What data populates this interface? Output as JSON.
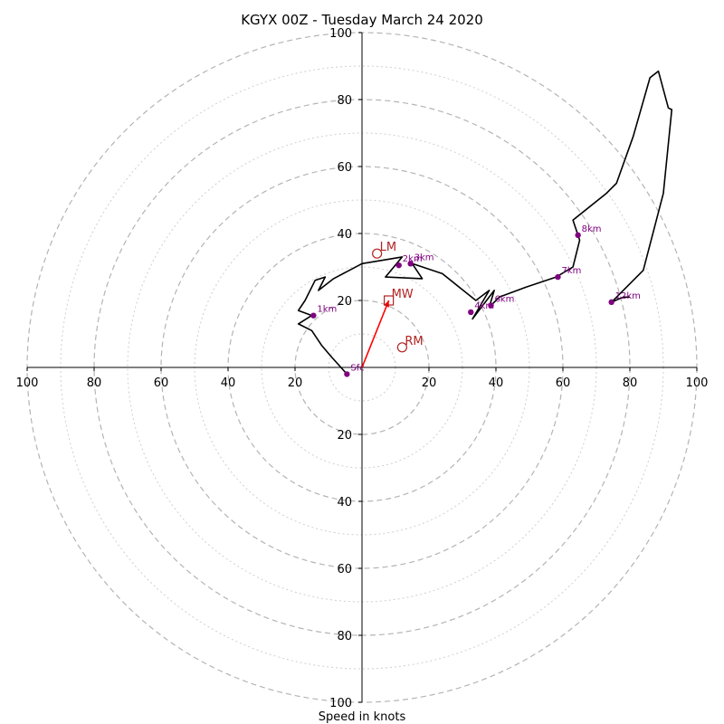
{
  "chart_data": {
    "type": "line",
    "title": "KGYX 00Z - Tuesday March 24 2020",
    "xlabel": "Speed in knots",
    "ylabel": "",
    "xlim": [
      -100,
      100
    ],
    "ylim": [
      -100,
      100
    ],
    "ring_values": [
      10,
      20,
      30,
      40,
      50,
      60,
      70,
      80,
      90,
      100
    ],
    "tick_values_x": [
      -100,
      -80,
      -60,
      -40,
      -20,
      20,
      40,
      60,
      80,
      100
    ],
    "tick_labels_x": [
      "100",
      "80",
      "60",
      "40",
      "20",
      "20",
      "40",
      "60",
      "80",
      "100"
    ],
    "tick_values_y": [
      100,
      80,
      60,
      40,
      20,
      -20,
      -40,
      -60,
      -80,
      -100
    ],
    "tick_labels_y": [
      "100",
      "80",
      "60",
      "40",
      "20",
      "20",
      "40",
      "60",
      "80",
      "100"
    ],
    "hodograph": {
      "color": "#000000",
      "u": [
        -4.5,
        -9,
        -12,
        -15,
        -19,
        -15,
        -19,
        -17,
        -14,
        -11,
        -13,
        -8.5,
        0,
        12,
        7,
        18,
        15,
        24,
        34,
        38,
        33,
        39.5,
        38,
        41,
        49,
        58,
        63,
        65,
        63,
        73,
        76,
        81,
        86,
        88.5,
        91.5,
        92.5,
        90,
        84,
        74.5,
        78,
        80
      ],
      "v": [
        -2,
        3,
        6.5,
        11,
        13,
        15.5,
        17,
        20,
        26,
        27,
        23,
        26.5,
        31,
        33,
        27,
        26.5,
        31,
        28,
        20,
        23,
        14.5,
        23,
        18,
        21,
        24,
        27,
        30,
        38,
        44,
        52,
        55,
        69,
        86.5,
        88.5,
        77.5,
        77,
        52,
        29,
        19.5,
        21,
        21
      ]
    },
    "height_markers": {
      "color": "#800080",
      "labels": [
        "Sfc",
        "1km",
        "2km",
        "3km",
        "4km",
        "6km",
        "7km",
        "8km",
        "12km"
      ],
      "u": [
        -4.5,
        -14.5,
        11,
        14.5,
        32.5,
        38.5,
        58.5,
        64.5,
        74.5
      ],
      "v": [
        -2,
        15.5,
        30.5,
        31,
        16.5,
        18.5,
        27,
        39.5,
        19.5
      ]
    },
    "storm_motions": {
      "color": "#b22222",
      "labels": [
        "LM",
        "MW",
        "RM"
      ],
      "u": [
        4.5,
        8,
        12
      ],
      "v": [
        34,
        20,
        6
      ]
    },
    "motion_arrow": {
      "color": "#ff0000",
      "from": [
        0,
        0
      ],
      "to": [
        8,
        20
      ]
    }
  }
}
